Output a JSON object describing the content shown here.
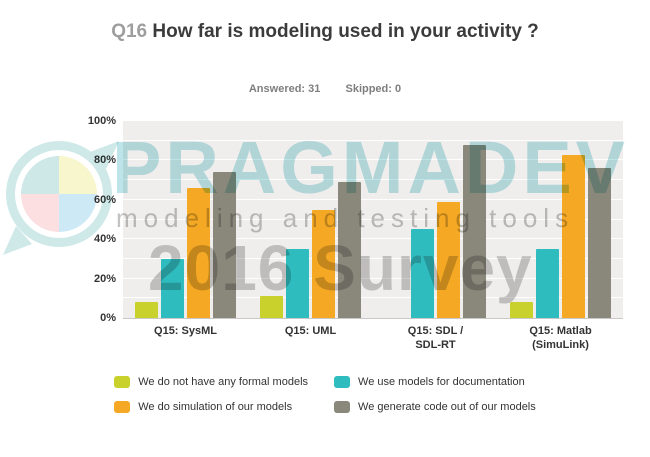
{
  "title": {
    "prefix": "Q16",
    "text": "How far is modeling used in your activity ?"
  },
  "stats": {
    "answered_label": "Answered:",
    "answered_value": "31",
    "skipped_label": "Skipped:",
    "skipped_value": "0"
  },
  "watermark": {
    "brand": "PRAGMADEV",
    "tagline": "modeling and testing tools",
    "survey": "2016 Survey"
  },
  "chart_data": {
    "type": "bar",
    "title": "Q16 How far is modeling used in your activity ?",
    "categories": [
      "Q15: SysML",
      "Q15: UML",
      "Q15: SDL /\nSDL-RT",
      "Q15: Matlab\n(SimuLink)"
    ],
    "series": [
      {
        "name": "We do not have any formal models",
        "color": "#c9d22c",
        "values": [
          8,
          11,
          0,
          8
        ]
      },
      {
        "name": "We use models for documentation",
        "color": "#2fbcbf",
        "values": [
          30,
          35,
          45,
          35
        ]
      },
      {
        "name": "We do simulation of our models",
        "color": "#f5a823",
        "values": [
          66,
          55,
          59,
          83
        ]
      },
      {
        "name": "We generate code out of our models",
        "color": "#8a887b",
        "values": [
          74,
          69,
          88,
          76
        ]
      }
    ],
    "ylim": [
      0,
      100
    ],
    "ytick_step_labels": 20,
    "grid_step": 10,
    "yticks": [
      "100%",
      "80%",
      "60%",
      "40%",
      "20%",
      "0%"
    ],
    "value_unit": "%",
    "legend_position": "bottom",
    "plot_background": "#efeeed",
    "gridline_color": "#ffffff"
  }
}
